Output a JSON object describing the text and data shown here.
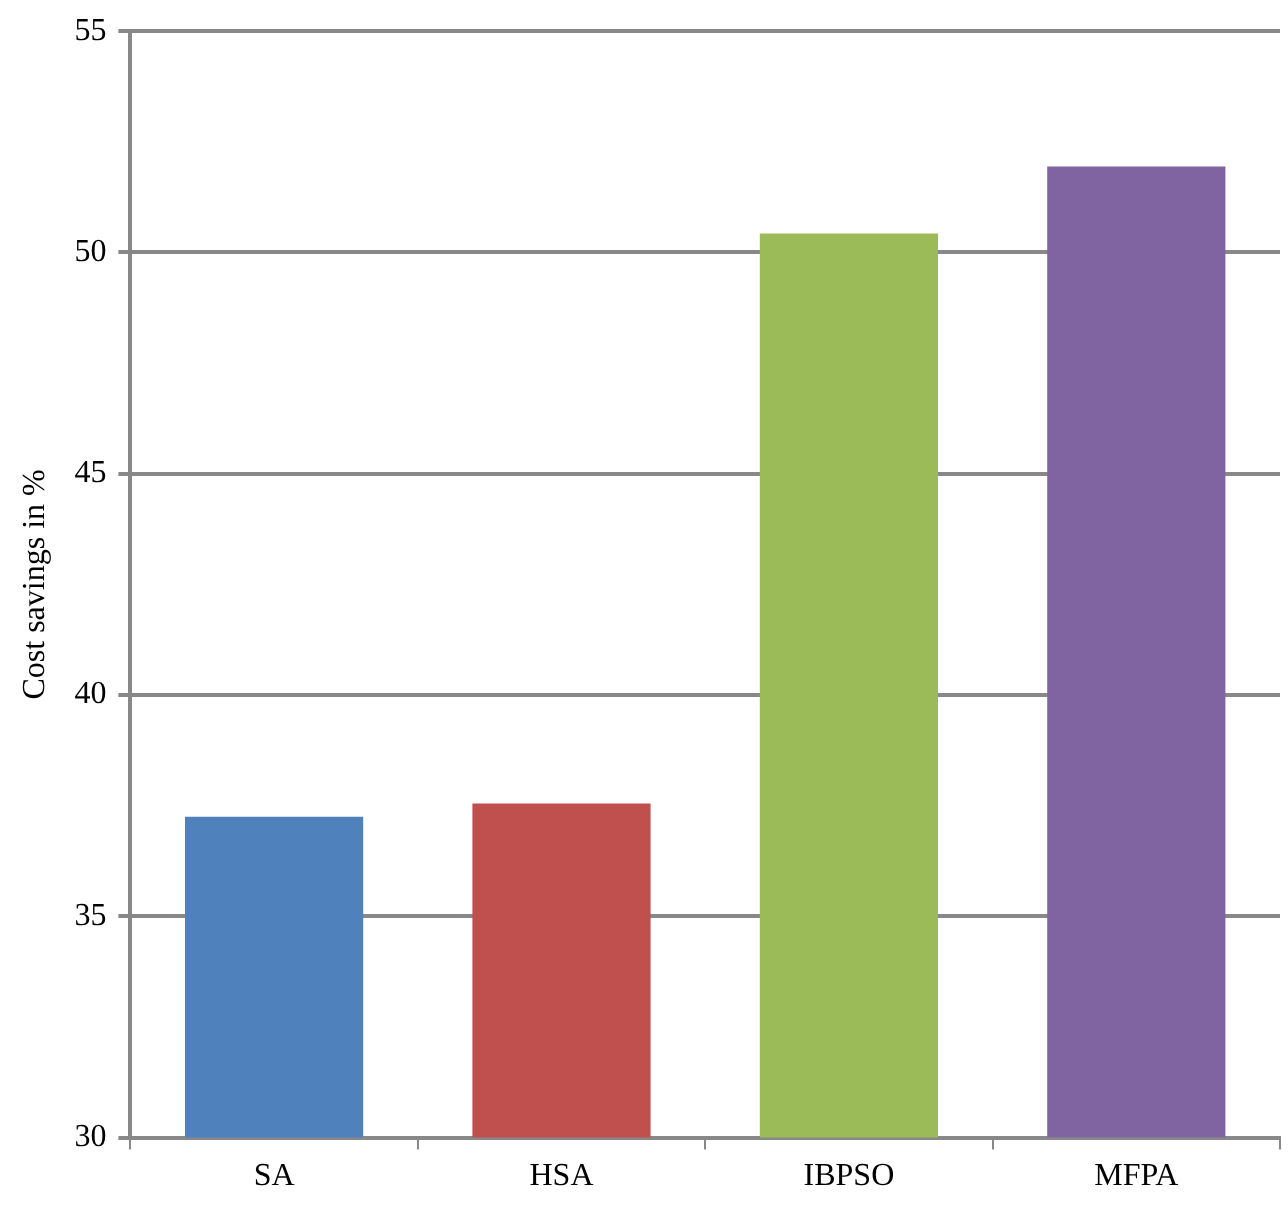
{
  "chart_data": {
    "type": "bar",
    "ylabel": "Cost savings in %",
    "categories": [
      "SA",
      "HSA",
      "IBPSO",
      "MFPA"
    ],
    "values": [
      37.25,
      37.55,
      50.43,
      51.94
    ],
    "colors": [
      "#4f81bd",
      "#c0504d",
      "#9bbb59",
      "#8064a2"
    ],
    "ylim": [
      30,
      55
    ],
    "yticks": [
      30,
      35,
      40,
      45,
      50,
      55
    ],
    "grid": "y",
    "legend": false
  }
}
